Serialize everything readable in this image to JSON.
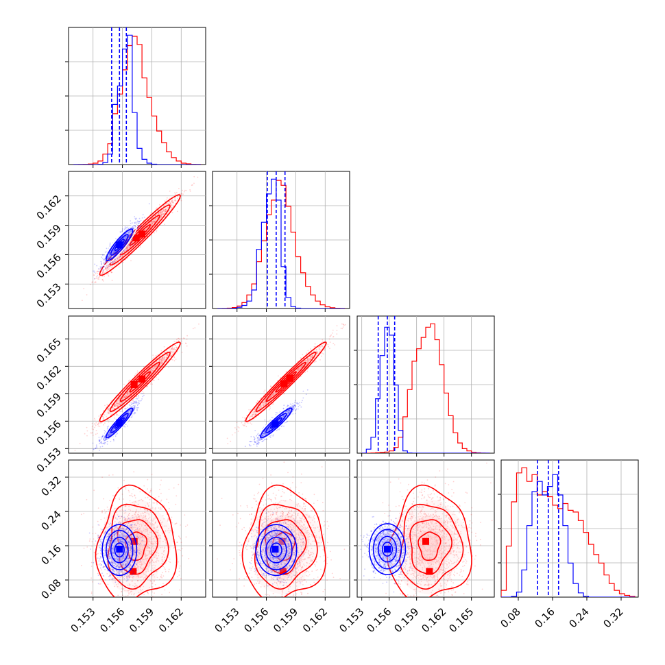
{
  "chart_data": {
    "type": "corner",
    "grid": true,
    "colors": {
      "blue": "#0000ff",
      "red": "#ff0000"
    },
    "parameters": [
      {
        "range": [
          0.1505,
          0.1645
        ],
        "ticks": [
          "0.153",
          "0.156",
          "0.159",
          "0.162"
        ]
      },
      {
        "range": [
          0.1505,
          0.1645
        ],
        "ticks": [
          "0.153",
          "0.156",
          "0.159",
          "0.162"
        ]
      },
      {
        "range": [
          0.1525,
          0.1675
        ],
        "ticks": [
          "0.153",
          "0.156",
          "0.159",
          "0.162",
          "0.165"
        ]
      },
      {
        "range": [
          0.04,
          0.36
        ],
        "ticks": [
          "0.08",
          "0.16",
          "0.24",
          "0.32"
        ]
      }
    ],
    "quantiles_blue": [
      [
        0.1549,
        0.1557,
        0.1564
      ],
      [
        0.1561,
        0.157,
        0.1579
      ],
      [
        0.1548,
        0.1558,
        0.1566
      ],
      [
        0.125,
        0.15,
        0.174
      ]
    ],
    "histograms": [
      {
        "edges": [
          0.151,
          0.1515,
          0.152,
          0.1525,
          0.153,
          0.1535,
          0.154,
          0.1545,
          0.155,
          0.1555,
          0.156,
          0.1565,
          0.157,
          0.1575,
          0.158,
          0.1585,
          0.159,
          0.1595,
          0.16,
          0.1605,
          0.161,
          0.1615,
          0.162,
          0.1625,
          0.163,
          0.1635,
          0.164
        ],
        "red": [
          0,
          1,
          2,
          5,
          12,
          30,
          90,
          180,
          440,
          610,
          820,
          1030,
          1110,
          1040,
          750,
          580,
          420,
          290,
          190,
          110,
          60,
          30,
          12,
          6,
          2,
          1
        ],
        "blue": [
          0,
          0,
          0,
          0,
          0,
          2,
          18,
          90,
          520,
          680,
          1000,
          1120,
          450,
          140,
          45,
          12,
          3,
          0,
          0,
          0,
          0,
          0,
          0,
          0,
          0,
          0
        ]
      },
      {
        "edges": [
          0.151,
          0.1515,
          0.152,
          0.1525,
          0.153,
          0.1535,
          0.154,
          0.1545,
          0.155,
          0.1555,
          0.156,
          0.1565,
          0.157,
          0.1575,
          0.158,
          0.1585,
          0.159,
          0.1595,
          0.16,
          0.1605,
          0.161,
          0.1615,
          0.162,
          0.1625,
          0.163,
          0.1635,
          0.164
        ],
        "red": [
          0,
          1,
          3,
          8,
          20,
          48,
          110,
          200,
          380,
          550,
          760,
          880,
          1040,
          1000,
          830,
          620,
          420,
          290,
          180,
          110,
          60,
          30,
          14,
          6,
          2,
          1
        ],
        "blue": [
          0,
          0,
          0,
          2,
          10,
          25,
          60,
          150,
          480,
          700,
          930,
          1050,
          880,
          340,
          90,
          15,
          3,
          0,
          0,
          0,
          0,
          0,
          0,
          0,
          0,
          0
        ]
      },
      {
        "edges": [
          0.153,
          0.1535,
          0.154,
          0.1545,
          0.155,
          0.1555,
          0.156,
          0.1565,
          0.157,
          0.1575,
          0.158,
          0.1585,
          0.159,
          0.1595,
          0.16,
          0.1605,
          0.161,
          0.1615,
          0.162,
          0.1625,
          0.163,
          0.1635,
          0.164,
          0.1645,
          0.165,
          0.1655,
          0.166,
          0.1665,
          0.167
        ],
        "red": [
          0,
          0,
          2,
          4,
          6,
          10,
          20,
          50,
          140,
          320,
          560,
          810,
          920,
          1020,
          1110,
          1140,
          1000,
          780,
          530,
          330,
          180,
          90,
          40,
          20,
          8,
          3,
          1,
          0
        ],
        "blue": [
          0,
          35,
          140,
          480,
          860,
          1110,
          1040,
          600,
          200,
          20,
          2,
          0,
          0,
          0,
          0,
          0,
          0,
          0,
          0,
          0,
          0,
          0,
          0,
          0,
          0,
          0,
          0,
          0
        ]
      },
      {
        "edges": [
          0.04,
          0.052,
          0.064,
          0.076,
          0.088,
          0.1,
          0.112,
          0.124,
          0.136,
          0.148,
          0.16,
          0.172,
          0.184,
          0.196,
          0.208,
          0.22,
          0.232,
          0.244,
          0.256,
          0.268,
          0.28,
          0.292,
          0.304,
          0.316,
          0.328,
          0.34,
          0.352
        ],
        "red": [
          40,
          300,
          560,
          730,
          760,
          680,
          720,
          600,
          620,
          590,
          540,
          520,
          550,
          510,
          500,
          450,
          380,
          310,
          250,
          200,
          130,
          80,
          40,
          20,
          10,
          5
        ],
        "blue": [
          0,
          0,
          5,
          30,
          160,
          420,
          620,
          680,
          600,
          650,
          720,
          600,
          420,
          200,
          80,
          25,
          5,
          0,
          0,
          0,
          0,
          0,
          0,
          0,
          0,
          0
        ]
      }
    ],
    "pairs": [
      {
        "row": 1,
        "col": 0,
        "red": {
          "mean": [
            0.1578,
            0.158
          ],
          "sd": [
            0.00175,
            0.00175
          ],
          "rho": 0.97,
          "peaks": [
            [
              0.1574,
              0.1577
            ],
            [
              0.158,
              0.1581
            ]
          ]
        },
        "blue": {
          "mean": [
            0.1557,
            0.157
          ],
          "sd": [
            0.0008,
            0.00095
          ],
          "rho": 0.9,
          "peaks": [
            [
              0.1557,
              0.157
            ]
          ]
        }
      },
      {
        "row": 2,
        "col": 0,
        "red": {
          "mean": [
            0.1578,
            0.1603
          ],
          "sd": [
            0.00175,
            0.00185
          ],
          "rho": 0.97,
          "peaks": [
            [
              0.1572,
              0.16
            ],
            [
              0.158,
              0.1606
            ]
          ]
        },
        "blue": {
          "mean": [
            0.1557,
            0.1558
          ],
          "sd": [
            0.0008,
            0.00095
          ],
          "rho": 0.93,
          "peaks": [
            [
              0.1557,
              0.1558
            ]
          ]
        }
      },
      {
        "row": 2,
        "col": 1,
        "red": {
          "mean": [
            0.158,
            0.1603
          ],
          "sd": [
            0.00175,
            0.00185
          ],
          "rho": 0.98,
          "peaks": [
            [
              0.1578,
              0.1601
            ],
            [
              0.1584,
              0.1607
            ]
          ]
        },
        "blue": {
          "mean": [
            0.157,
            0.1558
          ],
          "sd": [
            0.00095,
            0.00095
          ],
          "rho": 0.93,
          "peaks": [
            [
              0.1569,
              0.1557
            ]
          ]
        }
      },
      {
        "row": 3,
        "col": 0,
        "red": {
          "mean": [
            0.1574,
            0.16
          ],
          "sd": [
            0.0017,
            0.055
          ],
          "rho": 0.05,
          "peaks": [
            [
              0.1571,
              0.1
            ],
            [
              0.1572,
              0.17
            ]
          ]
        },
        "blue": {
          "mean": [
            0.1557,
            0.15
          ],
          "sd": [
            0.0008,
            0.027
          ],
          "rho": 0.0,
          "peaks": [
            [
              0.1557,
              0.152
            ]
          ]
        }
      },
      {
        "row": 3,
        "col": 1,
        "red": {
          "mean": [
            0.1578,
            0.16
          ],
          "sd": [
            0.00175,
            0.055
          ],
          "rho": 0.05,
          "peaks": [
            [
              0.1577,
              0.1
            ],
            [
              0.1576,
              0.17
            ]
          ]
        },
        "blue": {
          "mean": [
            0.157,
            0.15
          ],
          "sd": [
            0.00095,
            0.027
          ],
          "rho": 0.0,
          "peaks": [
            [
              0.1569,
              0.152
            ]
          ]
        }
      },
      {
        "row": 3,
        "col": 2,
        "red": {
          "mean": [
            0.1604,
            0.16
          ],
          "sd": [
            0.0019,
            0.055
          ],
          "rho": 0.05,
          "peaks": [
            [
              0.1604,
              0.1
            ],
            [
              0.16,
              0.17
            ]
          ]
        },
        "blue": {
          "mean": [
            0.1558,
            0.152
          ],
          "sd": [
            0.0009,
            0.027
          ],
          "rho": 0.0,
          "peaks": [
            [
              0.1558,
              0.152
            ]
          ]
        }
      }
    ]
  }
}
